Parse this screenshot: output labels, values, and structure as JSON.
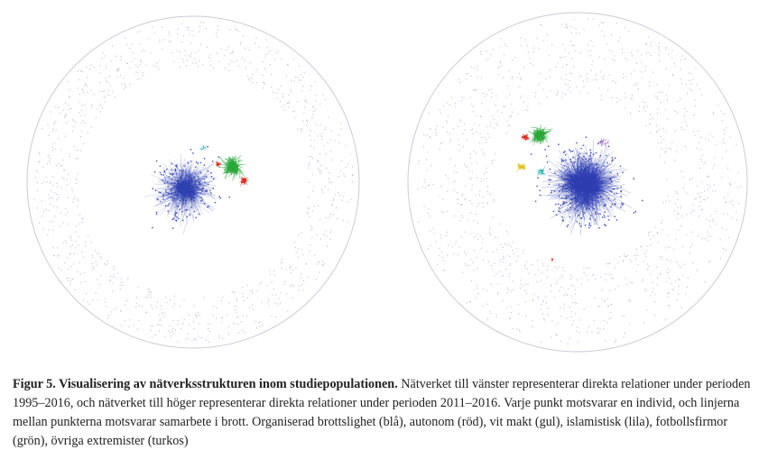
{
  "figure": {
    "colors": {
      "organised_crime": "#2e3fb0",
      "autonomous": "#e02a1e",
      "white_power": "#d9c21a",
      "islamist": "#8a4fb5",
      "football": "#2aa83a",
      "other_extremist": "#26b5b0",
      "outline": "#c9ccd6",
      "isolates": "#b8bdd0"
    },
    "networks": [
      {
        "name": "network-1995-2016"
      },
      {
        "name": "network-2011-2016"
      }
    ]
  },
  "caption": {
    "lead": "Figur 5. Visualisering av nätverksstrukturen inom studiepopulationen.",
    "body": " Nätverket till vänster representerar direkta relationer under perioden 1995–2016, och nätverket till höger representerar direkta relationer under perioden 2011–2016. Varje punkt motsvarar en individ, och linjerna mellan punkterna motsvarar samarbete i brott. Organiserad brottslighet (blå), autonom (röd), vit makt (gul), islamistisk (lila), fotbollsfirmor (grön), övriga extremister (turkos)"
  }
}
